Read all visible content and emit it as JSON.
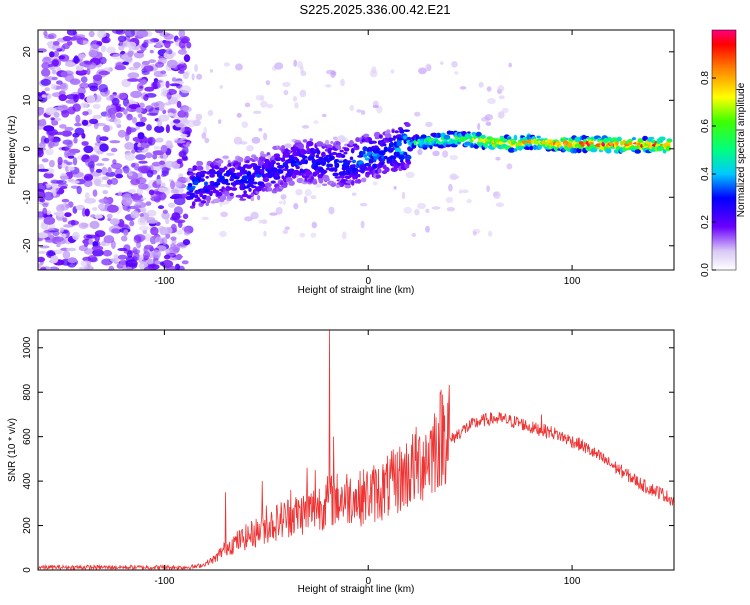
{
  "title": "S225.2025.336.00.42.E21",
  "chart_data": [
    {
      "type": "heatmap",
      "xlabel": "Height of straight line (km)",
      "ylabel": "Frequency (Hz)",
      "xlim": [
        -162,
        150
      ],
      "ylim": [
        -25,
        24.5
      ],
      "xticks": [
        -100,
        0,
        100
      ],
      "yticks": [
        -20,
        -10,
        0,
        10,
        20
      ],
      "colorbar": {
        "label": "Normalized spectral amplitude",
        "range": [
          0,
          1
        ],
        "ticks": [
          "0.0",
          "0.2",
          "0.4",
          "0.6",
          "0.8"
        ],
        "tick_values": [
          0.0,
          0.2,
          0.4,
          0.6,
          0.8
        ]
      },
      "ridge": [
        {
          "x": -88,
          "f": -8.0,
          "amp": 0.35
        },
        {
          "x": -80,
          "f": -7.0,
          "amp": 0.35
        },
        {
          "x": -70,
          "f": -6.0,
          "amp": 0.3
        },
        {
          "x": -60,
          "f": -6.5,
          "amp": 0.35
        },
        {
          "x": -50,
          "f": -5.0,
          "amp": 0.3
        },
        {
          "x": -40,
          "f": -3.5,
          "amp": 0.3
        },
        {
          "x": -30,
          "f": -2.5,
          "amp": 0.35
        },
        {
          "x": -20,
          "f": -3.0,
          "amp": 0.3
        },
        {
          "x": -10,
          "f": -3.5,
          "amp": 0.35
        },
        {
          "x": 0,
          "f": -1.5,
          "amp": 0.4
        },
        {
          "x": 10,
          "f": -1.0,
          "amp": 0.35
        },
        {
          "x": 20,
          "f": 1.0,
          "amp": 0.5
        },
        {
          "x": 30,
          "f": 1.5,
          "amp": 0.6
        },
        {
          "x": 40,
          "f": 2.0,
          "amp": 0.65
        },
        {
          "x": 50,
          "f": 2.0,
          "amp": 0.75
        },
        {
          "x": 60,
          "f": 1.5,
          "amp": 0.8
        },
        {
          "x": 70,
          "f": 1.0,
          "amp": 0.85
        },
        {
          "x": 80,
          "f": 1.5,
          "amp": 0.8
        },
        {
          "x": 90,
          "f": 1.0,
          "amp": 0.85
        },
        {
          "x": 100,
          "f": 1.0,
          "amp": 0.9
        },
        {
          "x": 110,
          "f": 1.0,
          "amp": 0.95
        },
        {
          "x": 120,
          "f": 0.8,
          "amp": 0.95
        },
        {
          "x": 130,
          "f": 0.8,
          "amp": 0.95
        },
        {
          "x": 140,
          "f": 0.8,
          "amp": 0.95
        },
        {
          "x": 148,
          "f": 0.8,
          "amp": 0.95
        }
      ]
    },
    {
      "type": "line",
      "xlabel": "Height of straight line (km)",
      "ylabel": "SNR (10 * v/v)",
      "xlim": [
        -162,
        150
      ],
      "ylim": [
        0,
        1080
      ],
      "xticks": [
        -100,
        0,
        100
      ],
      "yticks": [
        0,
        200,
        400,
        600,
        800,
        1000
      ],
      "grid": false,
      "line_color": "#ee3333",
      "series": [
        {
          "x": [
            -162,
            -140,
            -120,
            -100,
            -90,
            -85,
            -80,
            -75,
            -70,
            -65,
            -60,
            -55,
            -50,
            -45,
            -40,
            -35,
            -30,
            -25,
            -20,
            -15,
            -10,
            -5,
            0,
            5,
            10,
            15,
            20,
            25,
            30,
            35,
            40,
            45,
            50,
            55,
            60,
            65,
            70,
            75,
            80,
            85,
            90,
            95,
            100,
            105,
            110,
            115,
            120,
            125,
            130,
            135,
            140,
            145,
            150
          ],
          "y": [
            12,
            12,
            12,
            12,
            12,
            15,
            25,
            45,
            90,
            110,
            130,
            150,
            170,
            190,
            210,
            220,
            230,
            250,
            270,
            280,
            290,
            280,
            300,
            310,
            330,
            360,
            390,
            420,
            460,
            520,
            580,
            620,
            650,
            670,
            680,
            680,
            670,
            660,
            640,
            630,
            620,
            600,
            580,
            560,
            530,
            500,
            470,
            440,
            410,
            380,
            360,
            340,
            310
          ],
          "spikes": [
            {
              "x": -70,
              "y": 350
            },
            {
              "x": -52,
              "y": 400
            },
            {
              "x": -50,
              "y": 290
            },
            {
              "x": -38,
              "y": 360
            },
            {
              "x": -30,
              "y": 460
            },
            {
              "x": -26,
              "y": 450
            },
            {
              "x": -19,
              "y": 1080
            },
            {
              "x": -17,
              "y": 600
            },
            {
              "x": -7,
              "y": 330
            },
            {
              "x": 24,
              "y": 450
            },
            {
              "x": 85,
              "y": 700
            }
          ]
        }
      ]
    }
  ]
}
